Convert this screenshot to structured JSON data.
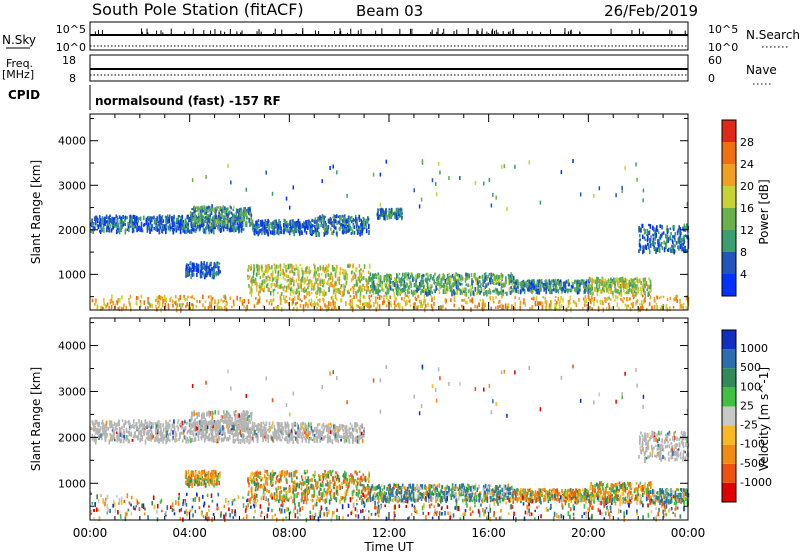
{
  "header": {
    "station": "South Pole Station (fitACF)",
    "beam": "Beam 03",
    "date": "26/Feb/2019"
  },
  "top_panels": {
    "nsky_label": "N.Sky",
    "nsky_ticks": [
      "10^5",
      "10^0"
    ],
    "nsearch_label": "N.Search",
    "nsearch_ticks": [
      "10^5",
      "10^0"
    ],
    "freq_label": "Freq.",
    "freq_unit": "[MHz]",
    "freq_ticks": [
      "18",
      "8"
    ],
    "nave_label": "Nave",
    "nave_ticks": [
      "60",
      "0"
    ],
    "cpid_label": "CPID",
    "cpid_text": "normalsound (fast) -157 RF"
  },
  "colors": {
    "power_scale": [
      "#0033ff",
      "#2255bb",
      "#3a9e6e",
      "#6ab04c",
      "#c8d232",
      "#f0a020",
      "#f07010",
      "#e02818"
    ],
    "velocity_scale": [
      "#e00000",
      "#f05010",
      "#f08c10",
      "#f8b820",
      "#c8c8c8",
      "#40c040",
      "#308a5a",
      "#2a6eb0",
      "#1030c0"
    ],
    "ground_scatter": "#b4b4b4"
  },
  "chart_data": [
    {
      "type": "heatmap",
      "name": "power",
      "ylabel": "Slant Range [km]",
      "yticks": [
        1000,
        2000,
        3000,
        4000
      ],
      "ylim": [
        200,
        4600
      ],
      "xlim": [
        0,
        24
      ],
      "colorbar_label": "Power [dB]",
      "colorbar_ticks": [
        4,
        8,
        12,
        16,
        20,
        24,
        28
      ],
      "colorbar_range": [
        0,
        32
      ],
      "regions": [
        {
          "t0": 0.0,
          "t1": 6.2,
          "r0": 2000,
          "r1": 2350,
          "level": 0.15
        },
        {
          "t0": 4.0,
          "t1": 6.5,
          "r0": 2150,
          "r1": 2550,
          "level": 0.3
        },
        {
          "t0": 6.5,
          "t1": 9.0,
          "r0": 1950,
          "r1": 2250,
          "level": 0.15
        },
        {
          "t0": 9.0,
          "t1": 11.2,
          "r0": 1950,
          "r1": 2350,
          "level": 0.2
        },
        {
          "t0": 11.5,
          "t1": 12.5,
          "r0": 2300,
          "r1": 2500,
          "level": 0.2
        },
        {
          "t0": 6.3,
          "t1": 11.2,
          "r0": 600,
          "r1": 1250,
          "level": 0.55
        },
        {
          "t0": 11.2,
          "t1": 17.0,
          "r0": 600,
          "r1": 1050,
          "level": 0.35
        },
        {
          "t0": 17.0,
          "t1": 20.0,
          "r0": 650,
          "r1": 900,
          "level": 0.25
        },
        {
          "t0": 20.0,
          "t1": 22.5,
          "r0": 600,
          "r1": 950,
          "level": 0.5
        },
        {
          "t0": 22.0,
          "t1": 24.0,
          "r0": 1550,
          "r1": 2150,
          "level": 0.15
        },
        {
          "t0": 3.8,
          "t1": 5.2,
          "r0": 1000,
          "r1": 1300,
          "level": 0.1
        },
        {
          "t0": 0.0,
          "t1": 24.0,
          "r0": 250,
          "r1": 550,
          "level": 0.7
        }
      ]
    },
    {
      "type": "heatmap",
      "name": "velocity",
      "ylabel": "Slant Range [km]",
      "yticks": [
        1000,
        2000,
        3000,
        4000
      ],
      "ylim": [
        200,
        4600
      ],
      "xlim": [
        0,
        24
      ],
      "xticks": [
        "00:00",
        "04:00",
        "08:00",
        "12:00",
        "16:00",
        "20:00",
        "00:00"
      ],
      "xlabel": "Time UT",
      "colorbar_label": "Velocity [m s^-1]",
      "colorbar_ticks": [
        "1000",
        "500",
        "100",
        "25",
        "-25",
        "-100",
        "-500",
        "-1000"
      ],
      "regions": [
        {
          "t0": 0.0,
          "t1": 6.5,
          "r0": 1950,
          "r1": 2400,
          "vel": "ground"
        },
        {
          "t0": 4.0,
          "t1": 6.5,
          "r0": 2150,
          "r1": 2600,
          "vel": "ground"
        },
        {
          "t0": 6.5,
          "t1": 11.0,
          "r0": 1950,
          "r1": 2350,
          "vel": "ground"
        },
        {
          "t0": 6.3,
          "t1": 11.2,
          "r0": 650,
          "r1": 1300,
          "vel": "negative"
        },
        {
          "t0": 11.2,
          "t1": 17.0,
          "r0": 650,
          "r1": 1000,
          "vel": "positive"
        },
        {
          "t0": 17.0,
          "t1": 20.0,
          "r0": 650,
          "r1": 900,
          "vel": "negative"
        },
        {
          "t0": 20.0,
          "t1": 22.5,
          "r0": 600,
          "r1": 1050,
          "vel": "negative"
        },
        {
          "t0": 22.3,
          "t1": 24.0,
          "r0": 600,
          "r1": 900,
          "vel": "positive"
        },
        {
          "t0": 22.0,
          "t1": 24.0,
          "r0": 1550,
          "r1": 2150,
          "vel": "ground"
        },
        {
          "t0": 3.8,
          "t1": 5.2,
          "r0": 1000,
          "r1": 1300,
          "vel": "negative"
        },
        {
          "t0": 0.0,
          "t1": 24.0,
          "r0": 250,
          "r1": 800,
          "vel": "mixed"
        }
      ]
    }
  ]
}
